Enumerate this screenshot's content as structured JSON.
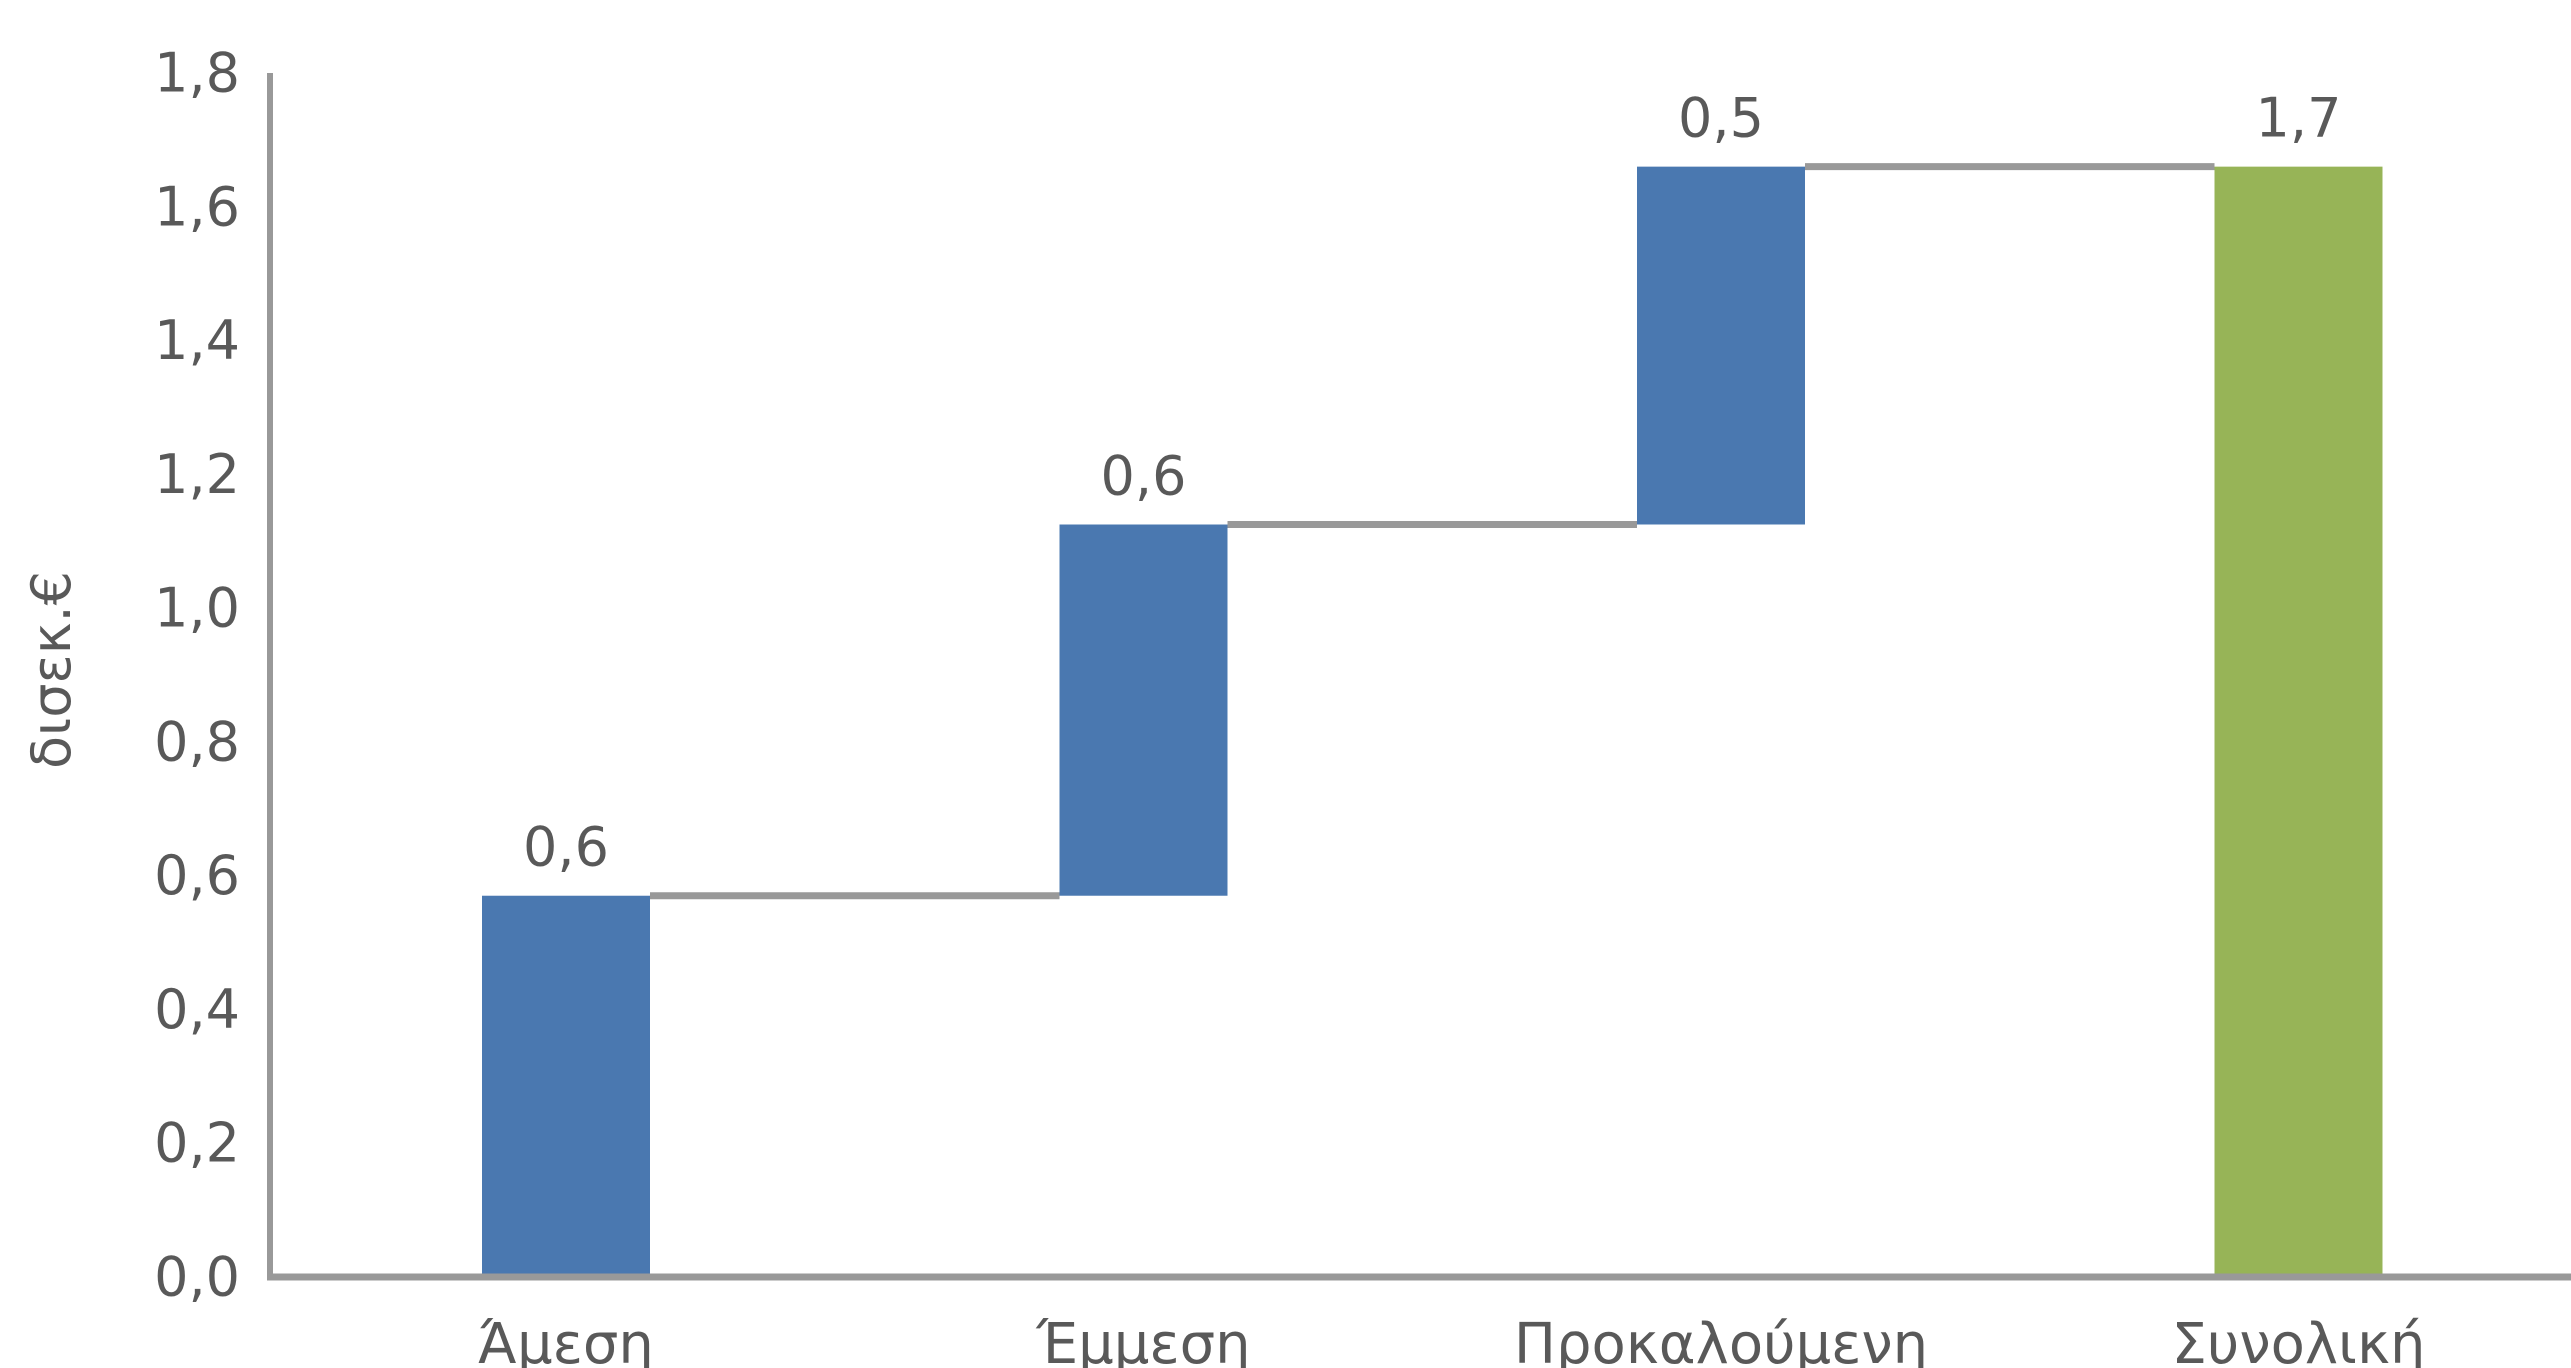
{
  "chart_data": {
    "type": "bar",
    "subtype": "waterfall",
    "title": "",
    "xlabel": "",
    "ylabel": "δισεκ.€",
    "ylim": [
      0,
      1.8
    ],
    "yticks": [
      "0,0",
      "0,2",
      "0,4",
      "0,6",
      "0,8",
      "1,0",
      "1,2",
      "1,4",
      "1,6",
      "1,8"
    ],
    "grid": false,
    "legend": "none",
    "categories": [
      "Άμεση",
      "Έμμεση",
      "Προκαλούμενη",
      "Συνολική"
    ],
    "values": [
      0.57,
      0.555,
      0.535,
      1.66
    ],
    "bases": [
      0,
      0.57,
      1.125,
      0
    ],
    "data_labels": [
      "0,6",
      "0,6",
      "0,5",
      "1,7"
    ],
    "bar_kinds": [
      "increment",
      "increment",
      "increment",
      "total"
    ],
    "colors": {
      "increment": "#4a78b0",
      "total": "#97b457",
      "connector": "#999999",
      "axis": "#999999",
      "text": "#595959"
    }
  }
}
